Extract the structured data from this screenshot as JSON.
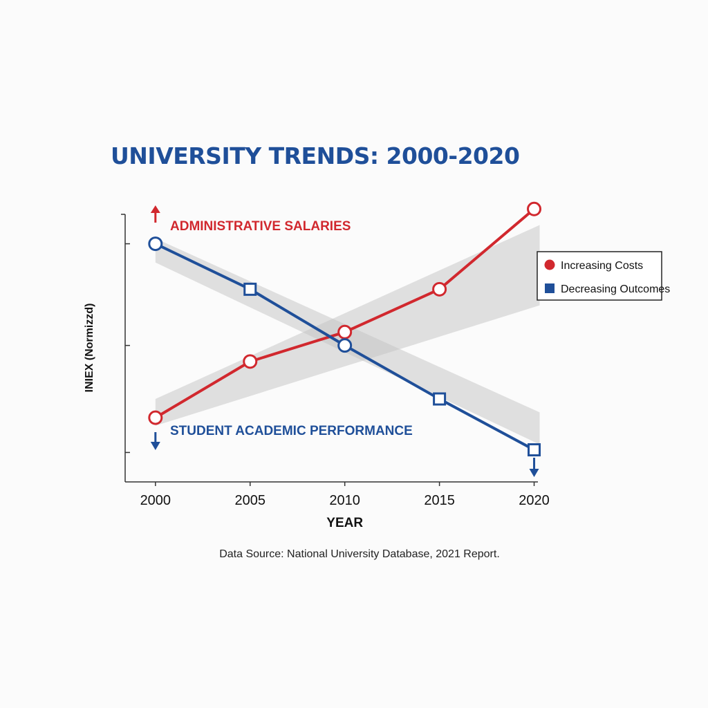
{
  "title": "UNIVERSITY TRENDS: 2000-2020",
  "source_note": "Data Source: National University Database, 2021 Report.",
  "colors": {
    "red": "#d1282e",
    "blue": "#1f4f99",
    "band": "#c4c4c4",
    "axis": "#333333"
  },
  "chart_data": {
    "type": "line",
    "title": "UNIVERSITY TRENDS: 2000-2020",
    "xlabel": "YEAR",
    "ylabel": "INIEX (Normizzd)",
    "x": [
      2000,
      2005,
      2010,
      2015,
      2020
    ],
    "xlim": [
      1998.4,
      2020.2
    ],
    "ylim": [
      0,
      1
    ],
    "y_ticks": [
      0.11,
      0.51,
      0.89
    ],
    "y_tick_labels": false,
    "grid": false,
    "legend_position": "right",
    "series": [
      {
        "name": "Increasing Costs",
        "label": "ADMINISTRATIVE SALARIES",
        "direction": "up",
        "color": "#d1282e",
        "marker": "circle",
        "values": [
          0.24,
          0.45,
          0.56,
          0.72,
          1.02
        ]
      },
      {
        "name": "Decreasing Outcomes",
        "label": "STUDENT ACADEMIC PERFORMANCE",
        "direction": "down",
        "color": "#1f4f99",
        "marker": "square",
        "values": [
          0.89,
          0.72,
          0.51,
          0.31,
          0.12
        ]
      }
    ],
    "trend_bands": [
      {
        "series": "Increasing Costs",
        "start": [
          0.21,
          0.31
        ],
        "end": [
          0.66,
          0.96
        ]
      },
      {
        "series": "Decreasing Outcomes",
        "start": [
          0.82,
          0.91
        ],
        "end": [
          0.14,
          0.26
        ]
      }
    ]
  }
}
